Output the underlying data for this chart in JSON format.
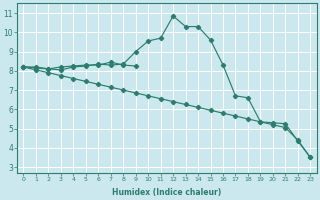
{
  "xlabel": "Humidex (Indice chaleur)",
  "bg_color": "#cce8ef",
  "grid_color": "#ffffff",
  "line_color": "#2d7d6e",
  "xlim": [
    -0.5,
    23.5
  ],
  "ylim": [
    2.7,
    11.5
  ],
  "xticks": [
    0,
    1,
    2,
    3,
    4,
    5,
    6,
    7,
    8,
    9,
    10,
    11,
    12,
    13,
    14,
    15,
    16,
    17,
    18,
    19,
    20,
    21,
    22,
    23
  ],
  "yticks": [
    3,
    4,
    5,
    6,
    7,
    8,
    9,
    10,
    11
  ],
  "line1_x": [
    0,
    1,
    2,
    3,
    4,
    5,
    6,
    7,
    8,
    9,
    10,
    11,
    12,
    13,
    14,
    15,
    16,
    17,
    18,
    19,
    20,
    21,
    22,
    23
  ],
  "line1_y": [
    8.2,
    8.2,
    8.1,
    8.05,
    8.2,
    8.25,
    8.35,
    8.3,
    8.35,
    9.0,
    9.55,
    9.7,
    10.85,
    10.3,
    10.3,
    9.6,
    8.3,
    6.7,
    6.6,
    5.35,
    5.3,
    5.25,
    4.35,
    3.5
  ],
  "line2_x": [
    0,
    1,
    2,
    3,
    4,
    5,
    6,
    7,
    8,
    9
  ],
  "line2_y": [
    8.2,
    8.15,
    8.1,
    8.2,
    8.25,
    8.3,
    8.3,
    8.45,
    8.3,
    8.25
  ],
  "line3_x": [
    0,
    1,
    2,
    3,
    4,
    5,
    6,
    7,
    8,
    9,
    10,
    11,
    12,
    13,
    14,
    15,
    16,
    17,
    18,
    19,
    20,
    21,
    22,
    23
  ],
  "line3_y": [
    8.2,
    8.05,
    7.9,
    7.75,
    7.6,
    7.45,
    7.3,
    7.15,
    7.0,
    6.85,
    6.7,
    6.55,
    6.4,
    6.25,
    6.1,
    5.95,
    5.8,
    5.65,
    5.5,
    5.35,
    5.2,
    5.05,
    4.4,
    3.5
  ]
}
